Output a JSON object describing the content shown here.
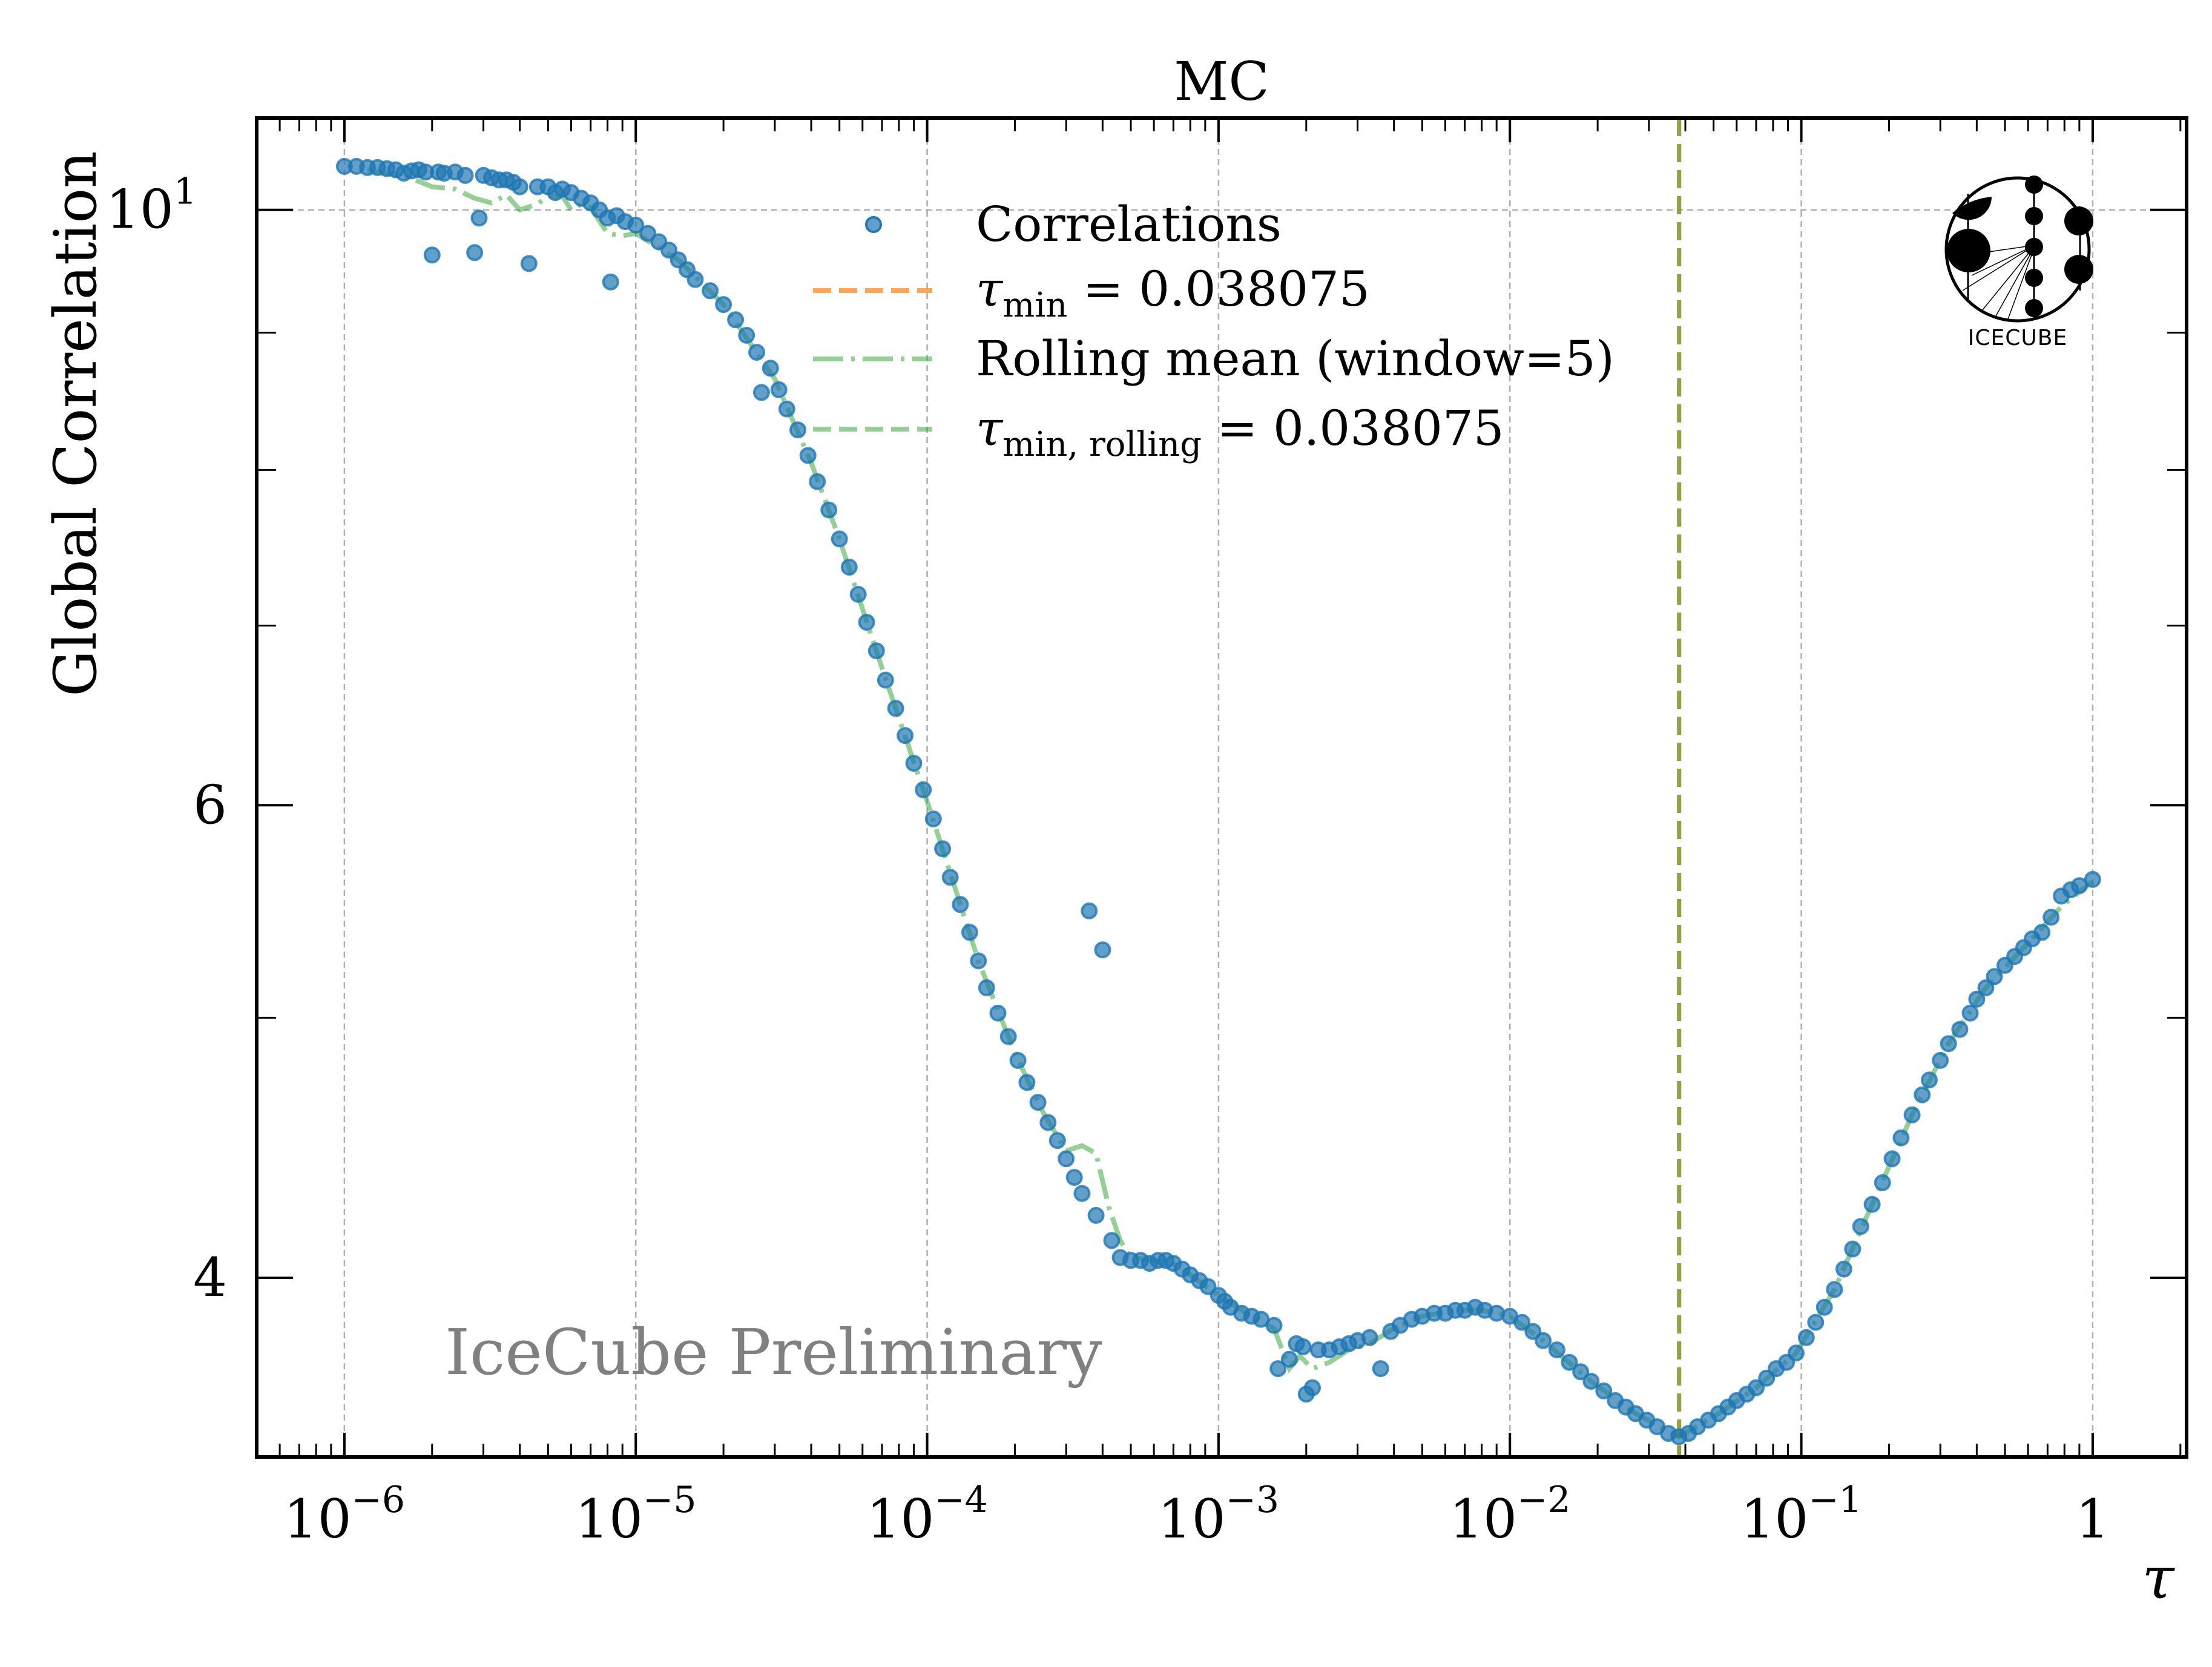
{
  "chart_data": {
    "type": "scatter",
    "title": "MC",
    "xlabel": "τ",
    "ylabel": "Global Correlation",
    "xscale": "log",
    "yscale": "log",
    "xlim": [
      5e-07,
      2.1
    ],
    "ylim": [
      3.43,
      10.82
    ],
    "x_ticks": [
      {
        "value": 1e-06,
        "base": "10",
        "exp": "−6"
      },
      {
        "value": 1e-05,
        "base": "10",
        "exp": "−5"
      },
      {
        "value": 0.0001,
        "base": "10",
        "exp": "−4"
      },
      {
        "value": 0.001,
        "base": "10",
        "exp": "−3"
      },
      {
        "value": 0.01,
        "base": "10",
        "exp": "−2"
      },
      {
        "value": 0.1,
        "base": "10",
        "exp": "−1"
      },
      {
        "value": 1,
        "base": "1",
        "exp": ""
      }
    ],
    "y_ticks": [
      {
        "value": 10,
        "base": "10",
        "exp": "1"
      },
      {
        "value": 6,
        "base": "6",
        "exp": ""
      },
      {
        "value": 4,
        "base": "4",
        "exp": ""
      }
    ],
    "y_minor_ticks": [
      5,
      7,
      8,
      9
    ],
    "grid": true,
    "legend": {
      "placement": "upper-center",
      "entries": [
        {
          "label": "Correlations",
          "style": "marker",
          "color": "#1f77b4"
        },
        {
          "label_main": "τ",
          "label_sub": "min",
          "label_rest": " = 0.038075",
          "style": "dashed",
          "color": "#ff7f0e"
        },
        {
          "label": "Rolling mean (window=5)",
          "style": "dashdot",
          "color": "#2ca02c"
        },
        {
          "label_main": "τ",
          "label_sub": "min, rolling",
          "label_rest": " = 0.038075",
          "style": "dashed",
          "color": "#2ca02c"
        }
      ]
    },
    "vlines": [
      {
        "name": "tau-min",
        "x": 0.038075,
        "color": "#ff7f0e"
      },
      {
        "name": "tau-min-rolling",
        "x": 0.038075,
        "color": "#2ca02c"
      }
    ],
    "watermark": "IceCube Preliminary",
    "logo_text": "IceCube",
    "series": [
      {
        "name": "Correlations",
        "color": "#1f77b4",
        "points": [
          [
            1e-06,
            10.38
          ],
          [
            1.1e-06,
            10.38
          ],
          [
            1.2e-06,
            10.37
          ],
          [
            1.3e-06,
            10.37
          ],
          [
            1.4e-06,
            10.36
          ],
          [
            1.5e-06,
            10.35
          ],
          [
            1.6e-06,
            10.32
          ],
          [
            1.7e-06,
            10.34
          ],
          [
            1.8e-06,
            10.35
          ],
          [
            1.9e-06,
            10.33
          ],
          [
            2e-06,
            9.62
          ],
          [
            2.1e-06,
            10.33
          ],
          [
            2.2e-06,
            10.32
          ],
          [
            2.4e-06,
            10.33
          ],
          [
            2.6e-06,
            10.3
          ],
          [
            2.8e-06,
            9.64
          ],
          [
            2.9e-06,
            9.93
          ],
          [
            3e-06,
            10.3
          ],
          [
            3.2e-06,
            10.28
          ],
          [
            3.4e-06,
            10.26
          ],
          [
            3.6e-06,
            10.26
          ],
          [
            3.8e-06,
            10.24
          ],
          [
            4e-06,
            10.2
          ],
          [
            4.3e-06,
            9.55
          ],
          [
            4.6e-06,
            10.2
          ],
          [
            5e-06,
            10.2
          ],
          [
            5.3e-06,
            10.15
          ],
          [
            5.6e-06,
            10.18
          ],
          [
            6e-06,
            10.15
          ],
          [
            6.5e-06,
            10.1
          ],
          [
            7e-06,
            10.06
          ],
          [
            7.5e-06,
            10.0
          ],
          [
            8e-06,
            9.93
          ],
          [
            8.2e-06,
            9.4
          ],
          [
            8.6e-06,
            9.95
          ],
          [
            9.2e-06,
            9.9
          ],
          [
            1e-05,
            9.87
          ],
          [
            1.1e-05,
            9.8
          ],
          [
            1.2e-05,
            9.73
          ],
          [
            1.3e-05,
            9.66
          ],
          [
            1.4e-05,
            9.58
          ],
          [
            1.5e-05,
            9.5
          ],
          [
            1.6e-05,
            9.42
          ],
          [
            1.8e-05,
            9.33
          ],
          [
            2e-05,
            9.22
          ],
          [
            2.2e-05,
            9.1
          ],
          [
            2.4e-05,
            8.98
          ],
          [
            2.6e-05,
            8.85
          ],
          [
            2.7e-05,
            8.55
          ],
          [
            2.9e-05,
            8.73
          ],
          [
            3.1e-05,
            8.57
          ],
          [
            3.3e-05,
            8.43
          ],
          [
            3.6e-05,
            8.28
          ],
          [
            3.9e-05,
            8.1
          ],
          [
            4.2e-05,
            7.92
          ],
          [
            4.6e-05,
            7.73
          ],
          [
            5e-05,
            7.54
          ],
          [
            5.4e-05,
            7.36
          ],
          [
            5.8e-05,
            7.19
          ],
          [
            6.2e-05,
            7.02
          ],
          [
            6.7e-05,
            6.85
          ],
          [
            7.2e-05,
            6.68
          ],
          [
            7.8e-05,
            6.52
          ],
          [
            8.4e-05,
            6.37
          ],
          [
            9e-05,
            6.22
          ],
          [
            9.7e-05,
            6.08
          ],
          [
            0.000105,
            5.93
          ],
          [
            0.000113,
            5.78
          ],
          [
            0.00012,
            5.64
          ],
          [
            0.00013,
            5.51
          ],
          [
            0.00014,
            5.38
          ],
          [
            0.00015,
            5.25
          ],
          [
            0.00016,
            5.13
          ],
          [
            0.000175,
            5.02
          ],
          [
            0.00019,
            4.92
          ],
          [
            0.000205,
            4.82
          ],
          [
            0.00022,
            4.73
          ],
          [
            0.00024,
            4.65
          ],
          [
            0.00026,
            4.57
          ],
          [
            0.00028,
            4.5
          ],
          [
            0.0003,
            4.43
          ],
          [
            0.00032,
            4.36
          ],
          [
            0.00034,
            4.3
          ],
          [
            0.00036,
            5.48
          ],
          [
            0.00038,
            4.22
          ],
          [
            0.0004,
            5.3
          ],
          [
            0.00043,
            4.13
          ],
          [
            0.00046,
            4.07
          ],
          [
            0.0005,
            4.06
          ],
          [
            0.00054,
            4.06
          ],
          [
            0.00058,
            4.05
          ],
          [
            0.00062,
            4.06
          ],
          [
            0.00066,
            4.06
          ],
          [
            0.0007,
            4.05
          ],
          [
            0.00075,
            4.03
          ],
          [
            0.0008,
            4.01
          ],
          [
            0.00086,
            3.99
          ],
          [
            0.00092,
            3.97
          ],
          [
            0.001,
            3.94
          ],
          [
            0.00105,
            3.92
          ],
          [
            0.0011,
            3.9
          ],
          [
            0.0012,
            3.88
          ],
          [
            0.0013,
            3.87
          ],
          [
            0.0014,
            3.86
          ],
          [
            0.00155,
            3.84
          ],
          [
            0.0016,
            3.7
          ],
          [
            0.00175,
            3.73
          ],
          [
            0.00185,
            3.78
          ],
          [
            0.00195,
            3.77
          ],
          [
            0.002,
            3.62
          ],
          [
            0.0021,
            3.64
          ],
          [
            0.0022,
            3.76
          ],
          [
            0.0024,
            3.76
          ],
          [
            0.0026,
            3.77
          ],
          [
            0.0028,
            3.78
          ],
          [
            0.003,
            3.79
          ],
          [
            0.0033,
            3.8
          ],
          [
            0.0036,
            3.7
          ],
          [
            0.0039,
            3.82
          ],
          [
            0.0042,
            3.84
          ],
          [
            0.0046,
            3.86
          ],
          [
            0.005,
            3.87
          ],
          [
            0.0055,
            3.88
          ],
          [
            0.006,
            3.88
          ],
          [
            0.0065,
            3.89
          ],
          [
            0.007,
            3.89
          ],
          [
            0.0076,
            3.9
          ],
          [
            0.0082,
            3.89
          ],
          [
            0.009,
            3.88
          ],
          [
            0.01,
            3.87
          ],
          [
            0.011,
            3.85
          ],
          [
            0.012,
            3.82
          ],
          [
            0.013,
            3.79
          ],
          [
            0.0145,
            3.76
          ],
          [
            0.016,
            3.72
          ],
          [
            0.0175,
            3.69
          ],
          [
            0.019,
            3.66
          ],
          [
            0.021,
            3.63
          ],
          [
            0.023,
            3.6
          ],
          [
            0.025,
            3.58
          ],
          [
            0.027,
            3.56
          ],
          [
            0.0295,
            3.54
          ],
          [
            0.032,
            3.52
          ],
          [
            0.035,
            3.5
          ],
          [
            0.038,
            3.49
          ],
          [
            0.041,
            3.5
          ],
          [
            0.044,
            3.52
          ],
          [
            0.048,
            3.54
          ],
          [
            0.052,
            3.56
          ],
          [
            0.056,
            3.58
          ],
          [
            0.06,
            3.6
          ],
          [
            0.065,
            3.62
          ],
          [
            0.07,
            3.64
          ],
          [
            0.076,
            3.67
          ],
          [
            0.082,
            3.7
          ],
          [
            0.089,
            3.72
          ],
          [
            0.096,
            3.75
          ],
          [
            0.104,
            3.8
          ],
          [
            0.112,
            3.85
          ],
          [
            0.12,
            3.9
          ],
          [
            0.13,
            3.96
          ],
          [
            0.14,
            4.03
          ],
          [
            0.15,
            4.1
          ],
          [
            0.16,
            4.18
          ],
          [
            0.175,
            4.26
          ],
          [
            0.19,
            4.34
          ],
          [
            0.205,
            4.43
          ],
          [
            0.22,
            4.51
          ],
          [
            0.24,
            4.6
          ],
          [
            0.26,
            4.68
          ],
          [
            0.275,
            4.74
          ],
          [
            0.3,
            4.82
          ],
          [
            0.32,
            4.89
          ],
          [
            0.35,
            4.95
          ],
          [
            0.38,
            5.02
          ],
          [
            0.4,
            5.08
          ],
          [
            0.43,
            5.13
          ],
          [
            0.46,
            5.18
          ],
          [
            0.5,
            5.23
          ],
          [
            0.54,
            5.27
          ],
          [
            0.58,
            5.31
          ],
          [
            0.62,
            5.35
          ],
          [
            0.67,
            5.38
          ],
          [
            0.72,
            5.45
          ],
          [
            0.78,
            5.55
          ],
          [
            0.84,
            5.58
          ],
          [
            0.9,
            5.6
          ],
          [
            1.0,
            5.63
          ]
        ]
      },
      {
        "name": "Rolling mean (window=5)",
        "color": "#2ca02c",
        "points": [
          [
            1.2e-06,
            10.34
          ],
          [
            1.6e-06,
            10.3
          ],
          [
            2e-06,
            10.2
          ],
          [
            2.4e-06,
            10.18
          ],
          [
            2.8e-06,
            10.1
          ],
          [
            3.2e-06,
            10.06
          ],
          [
            3.6e-06,
            10.13
          ],
          [
            4e-06,
            10.0
          ],
          [
            4.6e-06,
            10.05
          ],
          [
            5e-06,
            10.12
          ],
          [
            5.6e-06,
            10.12
          ],
          [
            6e-06,
            10.0
          ],
          [
            6.5e-06,
            10.05
          ],
          [
            7e-06,
            10.02
          ],
          [
            8e-06,
            9.8
          ],
          [
            9e-06,
            9.78
          ],
          [
            1e-05,
            9.8
          ],
          [
            1.4e-05,
            9.58
          ],
          [
            2e-05,
            9.22
          ],
          [
            3e-05,
            8.65
          ],
          [
            4e-05,
            8.05
          ],
          [
            5e-05,
            7.54
          ],
          [
            7e-05,
            6.75
          ],
          [
            0.0001,
            6.02
          ],
          [
            0.00015,
            5.25
          ],
          [
            0.0002,
            4.85
          ],
          [
            0.00025,
            4.61
          ],
          [
            0.0003,
            4.46
          ],
          [
            0.00034,
            4.48
          ],
          [
            0.00038,
            4.45
          ],
          [
            0.00042,
            4.25
          ],
          [
            0.00046,
            4.13
          ],
          [
            0.0005,
            4.07
          ],
          [
            0.0006,
            4.06
          ],
          [
            0.0007,
            4.05
          ],
          [
            0.0008,
            4.01
          ],
          [
            0.001,
            3.94
          ],
          [
            0.0013,
            3.87
          ],
          [
            0.00155,
            3.83
          ],
          [
            0.00175,
            3.7
          ],
          [
            0.0019,
            3.74
          ],
          [
            0.0021,
            3.7
          ],
          [
            0.0024,
            3.72
          ],
          [
            0.0028,
            3.76
          ],
          [
            0.0033,
            3.78
          ],
          [
            0.004,
            3.83
          ],
          [
            0.005,
            3.87
          ],
          [
            0.0065,
            3.89
          ],
          [
            0.008,
            3.89
          ],
          [
            0.01,
            3.87
          ],
          [
            0.013,
            3.79
          ],
          [
            0.019,
            3.66
          ],
          [
            0.027,
            3.56
          ],
          [
            0.038,
            3.49
          ],
          [
            0.052,
            3.56
          ],
          [
            0.07,
            3.64
          ],
          [
            0.096,
            3.75
          ],
          [
            0.13,
            3.96
          ],
          [
            0.175,
            4.26
          ],
          [
            0.24,
            4.6
          ],
          [
            0.32,
            4.89
          ],
          [
            0.43,
            5.13
          ],
          [
            0.58,
            5.31
          ],
          [
            0.78,
            5.5
          ],
          [
            1.0,
            5.62
          ]
        ]
      }
    ]
  }
}
